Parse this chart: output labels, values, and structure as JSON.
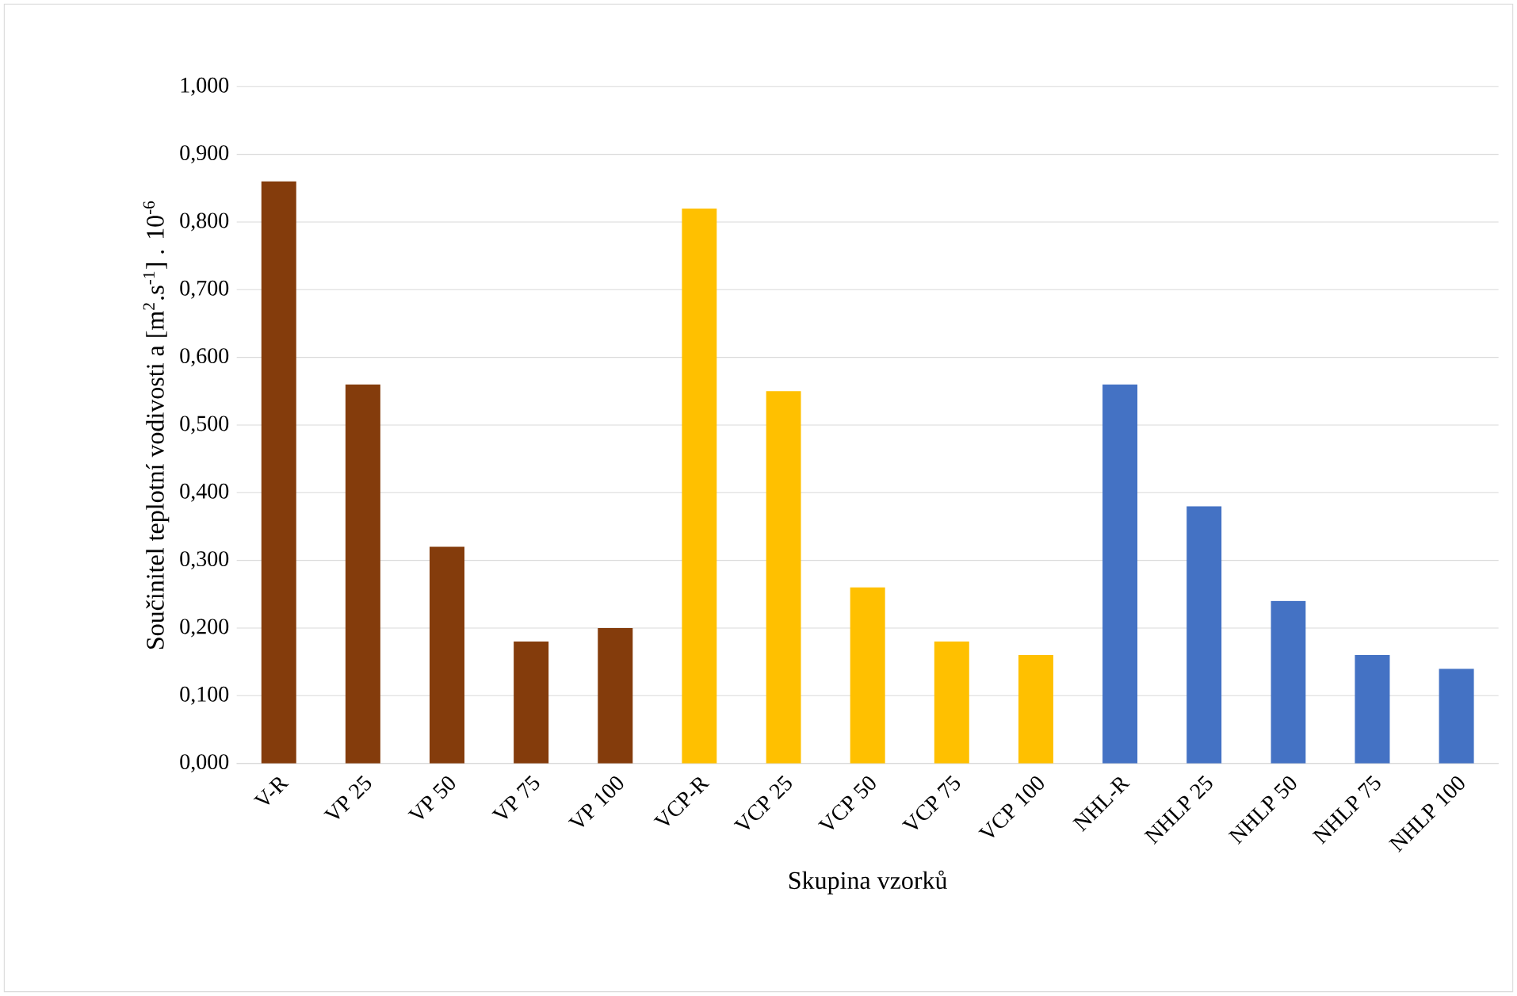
{
  "chart_data": {
    "type": "bar",
    "xlabel": "Skupina vzorků",
    "ylabel": "Součinitel teplotní vodivosti a [m$^{2}$.s$^{-1}$] . 10$^{-6}$",
    "categories": [
      "V-R",
      "VP 25",
      "VP 50",
      "VP 75",
      "VP 100",
      "VCP-R",
      "VCP 25",
      "VCP 50",
      "VCP 75",
      "VCP 100",
      "NHL-R",
      "NHLP 25",
      "NHLP 50",
      "NHLP 75",
      "NHLP 100"
    ],
    "values": [
      0.86,
      0.56,
      0.32,
      0.18,
      0.2,
      0.82,
      0.55,
      0.26,
      0.18,
      0.16,
      0.56,
      0.38,
      0.24,
      0.16,
      0.14
    ],
    "colors": [
      "#843c0c",
      "#843c0c",
      "#843c0c",
      "#843c0c",
      "#843c0c",
      "#ffc000",
      "#ffc000",
      "#ffc000",
      "#ffc000",
      "#ffc000",
      "#4472c4",
      "#4472c4",
      "#4472c4",
      "#4472c4",
      "#4472c4"
    ],
    "ylim": [
      0,
      1
    ],
    "yticks": [
      {
        "value": 0,
        "label": "0,000"
      },
      {
        "value": 0.1,
        "label": "0,100"
      },
      {
        "value": 0.2,
        "label": "0,200"
      },
      {
        "value": 0.3,
        "label": "0,300"
      },
      {
        "value": 0.4,
        "label": "0,400"
      },
      {
        "value": 0.5,
        "label": "0,500"
      },
      {
        "value": 0.6,
        "label": "0,600"
      },
      {
        "value": 0.7,
        "label": "0,700"
      },
      {
        "value": 0.8,
        "label": "0,800"
      },
      {
        "value": 0.9,
        "label": "0,900"
      },
      {
        "value": 1,
        "label": "1,000"
      }
    ],
    "grid": "y"
  }
}
